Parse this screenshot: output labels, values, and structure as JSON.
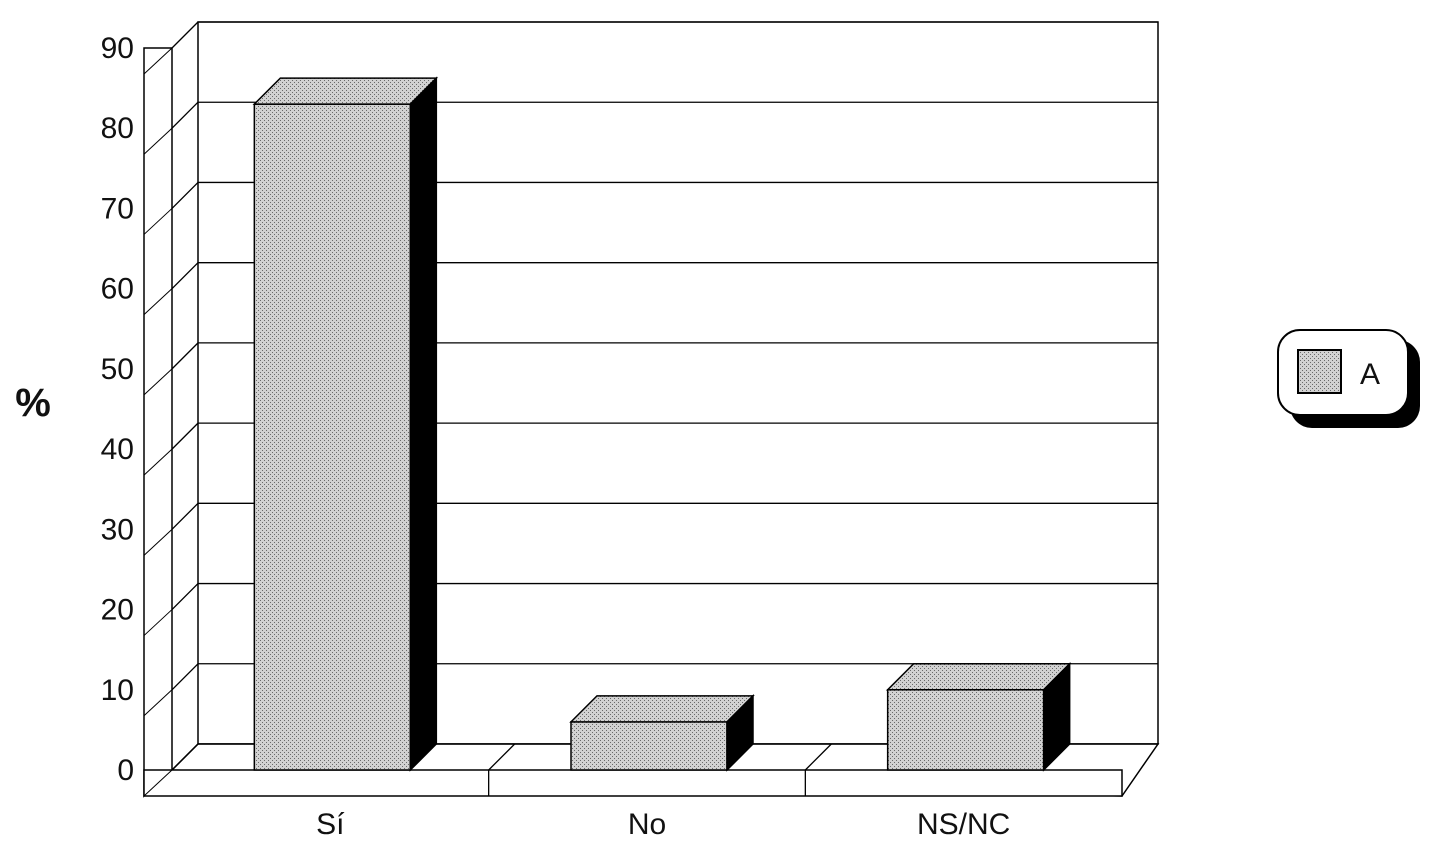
{
  "chart_data": {
    "type": "bar",
    "categories": [
      "Sí",
      "No",
      "NS/NC"
    ],
    "series": [
      {
        "name": "A",
        "values": [
          83,
          6,
          10
        ]
      }
    ],
    "ylabel": "%",
    "ylim": [
      0,
      90
    ],
    "yticks": [
      "0",
      "10",
      "20",
      "30",
      "40",
      "50",
      "60",
      "70",
      "80",
      "90"
    ],
    "grid": true,
    "legend": "right",
    "style": "3d"
  },
  "colors": {
    "bar_fill": "#c9c9c9",
    "bar_side": "#000000",
    "grid": "#000000",
    "background": "#ffffff"
  }
}
